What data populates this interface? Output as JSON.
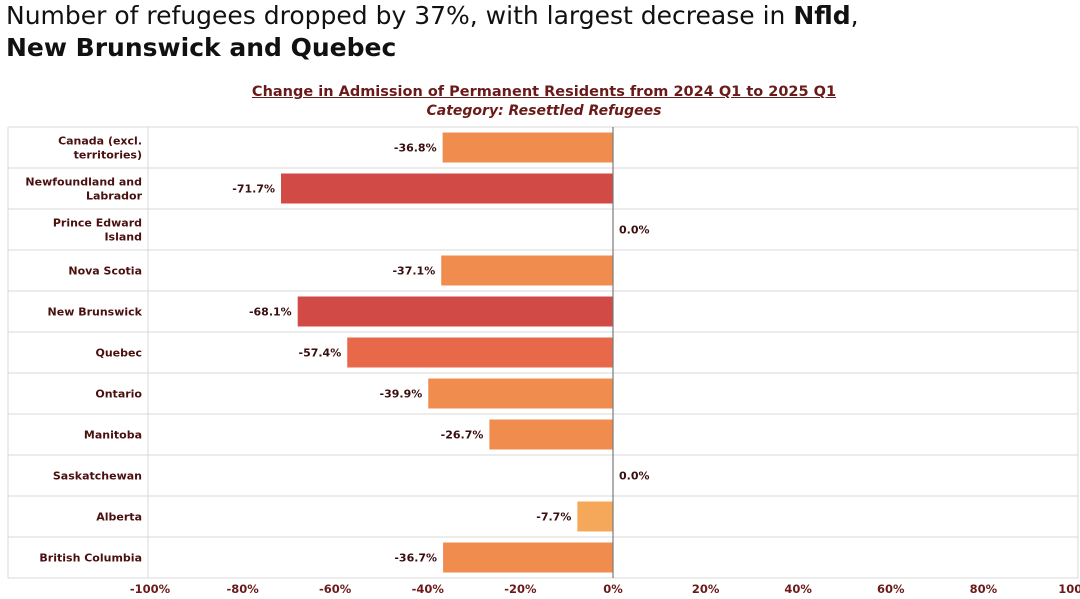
{
  "headline": {
    "part1": "Number of refugees dropped by 37%, with largest decrease in ",
    "bold1": "Nfld",
    "part2": ",",
    "bold2": "New Brunswick and Quebec"
  },
  "chart_data": {
    "type": "bar",
    "orientation": "horizontal",
    "title": "Change in Admission of Permanent Residents from 2024 Q1 to 2025 Q1",
    "subtitle": "Category: Resettled Refugees",
    "categories": [
      [
        "Canada (excl.",
        "territories)"
      ],
      [
        "Newfoundland and",
        "Labrador"
      ],
      [
        "Prince Edward",
        "Island"
      ],
      [
        "Nova Scotia"
      ],
      [
        "New Brunswick"
      ],
      [
        "Quebec"
      ],
      [
        "Ontario"
      ],
      [
        "Manitoba"
      ],
      [
        "Saskatchewan"
      ],
      [
        "Alberta"
      ],
      [
        "British Columbia"
      ]
    ],
    "values": [
      -36.8,
      -71.7,
      0.0,
      -37.1,
      -68.1,
      -57.4,
      -39.9,
      -26.7,
      0.0,
      -7.7,
      -36.7
    ],
    "value_labels": [
      "-36.8%",
      "-71.7%",
      "0.0%",
      "-37.1%",
      "-68.1%",
      "-57.4%",
      "-39.9%",
      "-26.7%",
      "0.0%",
      "-7.7%",
      "-36.7%"
    ],
    "xlim": [
      -100,
      100
    ],
    "xticks": [
      -100,
      -80,
      -60,
      -40,
      -20,
      0,
      20,
      40,
      60,
      80,
      100
    ],
    "xtick_labels": [
      "-100%",
      "-80%",
      "-60%",
      "-40%",
      "-20%",
      "0%",
      "20%",
      "40%",
      "60%",
      "80%",
      "100%"
    ],
    "colors": {
      "dark": "#d24a45",
      "mid": "#e8684a",
      "orange": "#f08c4e",
      "light": "#f5a85a",
      "grid": "#d9d9d9",
      "text": "#4a1010"
    }
  }
}
